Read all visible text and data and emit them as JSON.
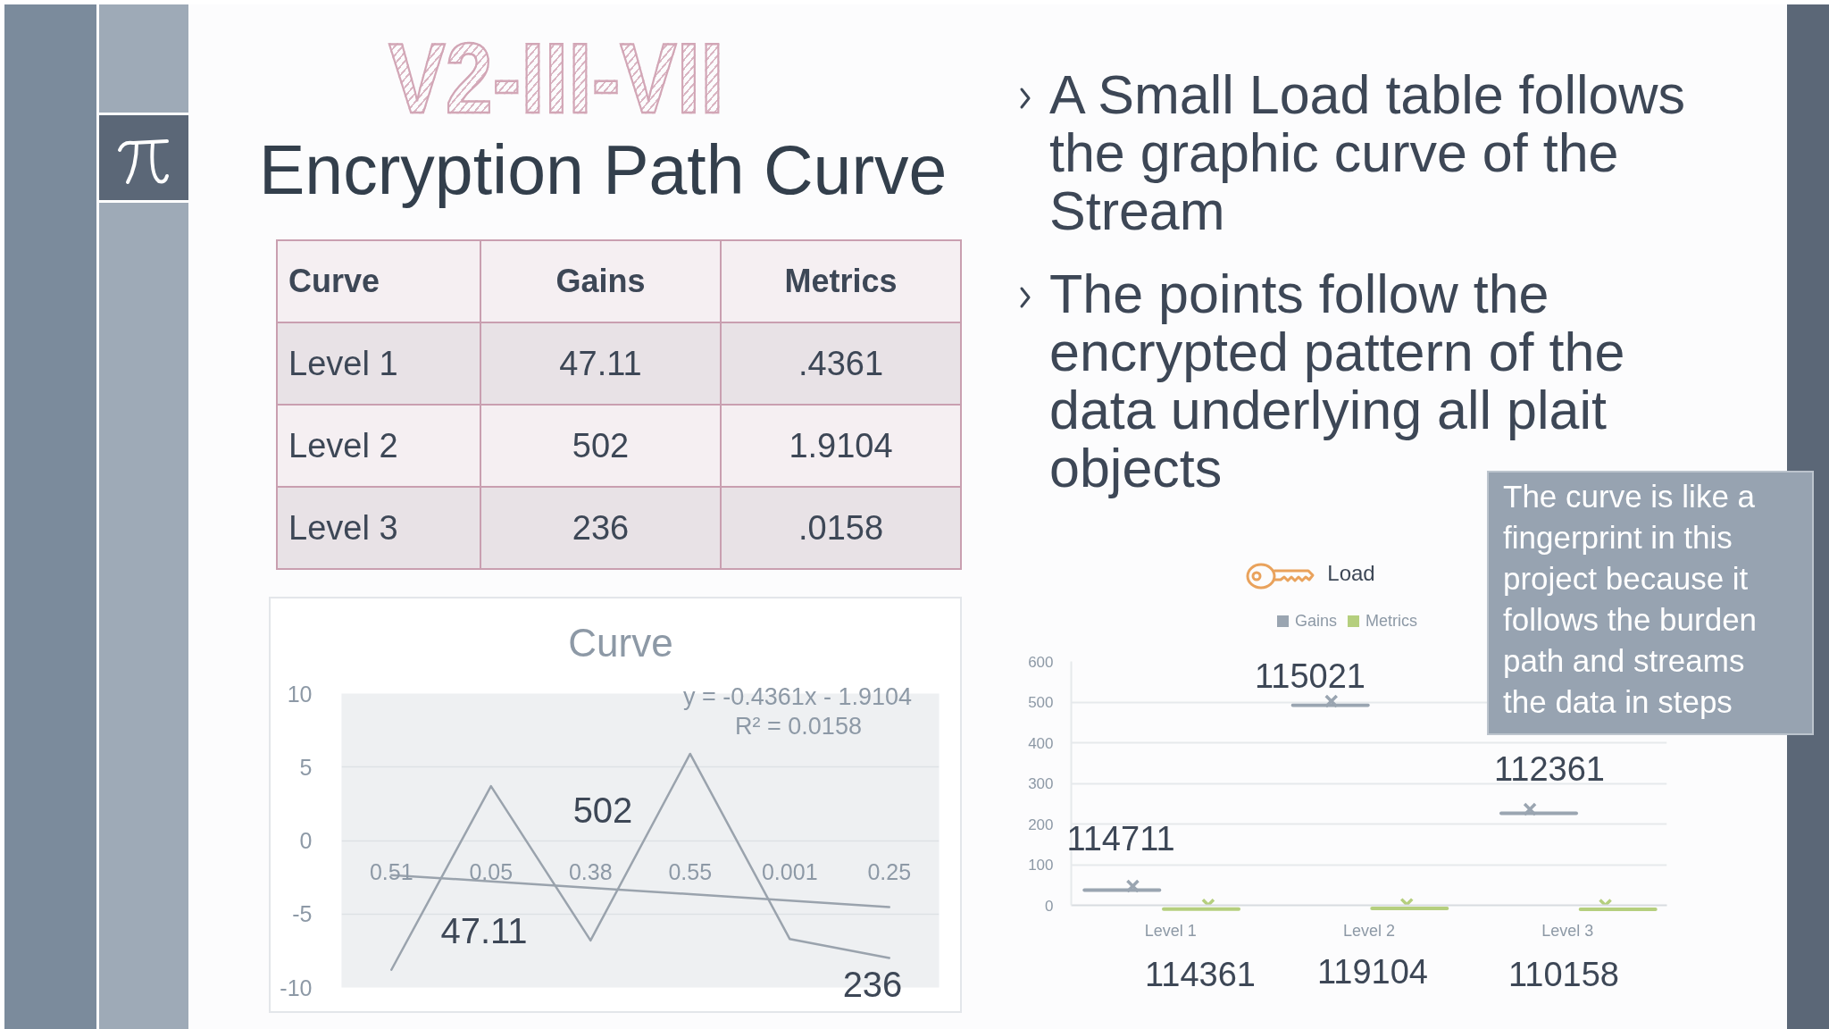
{
  "chart_data": [
    {
      "type": "other",
      "title": "Encryption Path Curve",
      "subtitle": "V2-III-VII",
      "annotations": [
        "A Small Load table follows the graphic curve of the Stream",
        "The points follow the encrypted pattern of the data underlying all plait objects"
      ]
    },
    {
      "type": "heatmap",
      "ylabel": "Curve",
      "categories": [
        "Gains",
        "Metrics"
      ],
      "y_categories": [
        "Level 1",
        "Level 2",
        "Level 3"
      ],
      "cells": [
        [
          47.11,
          0.4361
        ],
        [
          502,
          1.9104
        ],
        [
          236,
          0.0158
        ]
      ],
      "cell_labels": [
        [
          "47.11",
          ".4361"
        ],
        [
          "502",
          "1.9104"
        ],
        [
          "236",
          ".0158"
        ]
      ]
    },
    {
      "type": "line",
      "title": "Curve",
      "categories": [
        "0.51",
        "0.05",
        "0.38",
        "0.55",
        "0.001",
        "0.25"
      ],
      "ylim": [
        -10,
        10
      ],
      "yticks": [
        -10,
        -5,
        0,
        5,
        10
      ],
      "grid": "y",
      "series": [
        {
          "color": "#9aa3ad",
          "values": [
            -8.8,
            3.7,
            -6.8,
            5.9,
            -6.7,
            -8.0
          ]
        },
        {
          "color": "#9aa3ad",
          "values": [
            -2.35,
            -2.78,
            -3.22,
            -3.65,
            -4.09,
            -4.53
          ]
        }
      ],
      "annotations": [
        "47.11",
        "502",
        "236",
        "y = -0.4361x - 1.9104",
        "R² = 0.0158"
      ]
    },
    {
      "type": "scatter",
      "title": "Load",
      "categories": [
        "Level 1",
        "Level 2",
        "Level 3"
      ],
      "series": [
        {
          "name": "Gains",
          "color": "#9aa5b1",
          "values": [
            47.11,
            502,
            236
          ]
        },
        {
          "name": "Metrics",
          "color": "#b5cf7e",
          "values": [
            0.4361,
            1.9104,
            0.0158
          ]
        }
      ],
      "ylim": [
        0,
        600
      ],
      "yticks": [
        0,
        100,
        200,
        300,
        400,
        500,
        600
      ],
      "grid": "y",
      "legend": "top",
      "marker": "cross",
      "annotations": [
        "114711",
        "115021",
        "112361",
        "114361",
        "119104",
        "110158",
        "The curve is like a fingerprint in this project because it follows the burden path and streams the data in steps"
      ]
    }
  ]
}
